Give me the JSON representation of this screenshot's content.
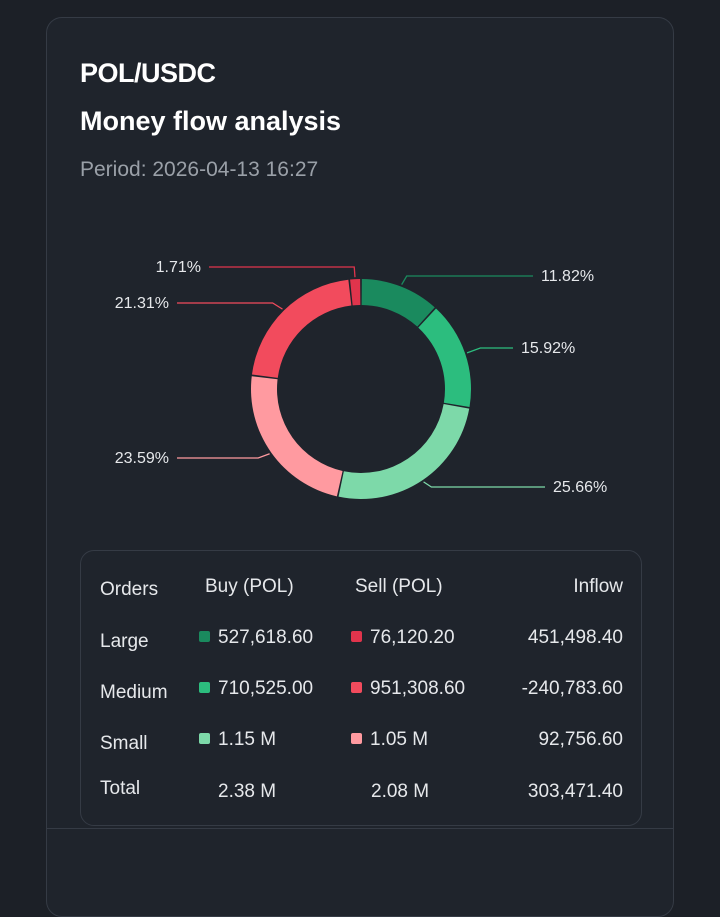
{
  "header": {
    "pair": "POL/USDC",
    "title": "Money flow analysis",
    "period": "Period: 2026-04-13 16:27"
  },
  "colors": {
    "large_buy": "#1a8a5e",
    "medium_buy": "#2cbd7e",
    "small_buy": "#7dd9a9",
    "large_sell": "#e0344c",
    "medium_sell": "#f24b5d",
    "small_sell": "#ff9aa0"
  },
  "chart_data": {
    "type": "pie",
    "style": "donut",
    "slices": [
      {
        "name": "Large buy",
        "percent": 11.82,
        "label": "11.82%",
        "color": "#1a8a5e"
      },
      {
        "name": "Medium buy",
        "percent": 15.92,
        "label": "15.92%",
        "color": "#2cbd7e"
      },
      {
        "name": "Small buy",
        "percent": 25.66,
        "label": "25.66%",
        "color": "#7dd9a9"
      },
      {
        "name": "Small sell",
        "percent": 23.59,
        "label": "23.59%",
        "color": "#ff9aa0"
      },
      {
        "name": "Medium sell",
        "percent": 21.31,
        "label": "21.31%",
        "color": "#f24b5d"
      },
      {
        "name": "Large sell",
        "percent": 1.71,
        "label": "1.71%",
        "color": "#e0344c"
      }
    ]
  },
  "table": {
    "headers": {
      "orders": "Orders",
      "buy": "Buy (POL)",
      "sell": "Sell (POL)",
      "inflow": "Inflow"
    },
    "rows": [
      {
        "label": "Large",
        "buy": "527,618.60",
        "sell": "76,120.20",
        "inflow": "451,498.40"
      },
      {
        "label": "Medium",
        "buy": "710,525.00",
        "sell": "951,308.60",
        "inflow": "-240,783.60"
      },
      {
        "label": "Small",
        "buy": "1.15 M",
        "sell": "1.05 M",
        "inflow": "92,756.60"
      },
      {
        "label": "Total",
        "buy": "2.38 M",
        "sell": "2.08 M",
        "inflow": "303,471.40"
      }
    ]
  }
}
